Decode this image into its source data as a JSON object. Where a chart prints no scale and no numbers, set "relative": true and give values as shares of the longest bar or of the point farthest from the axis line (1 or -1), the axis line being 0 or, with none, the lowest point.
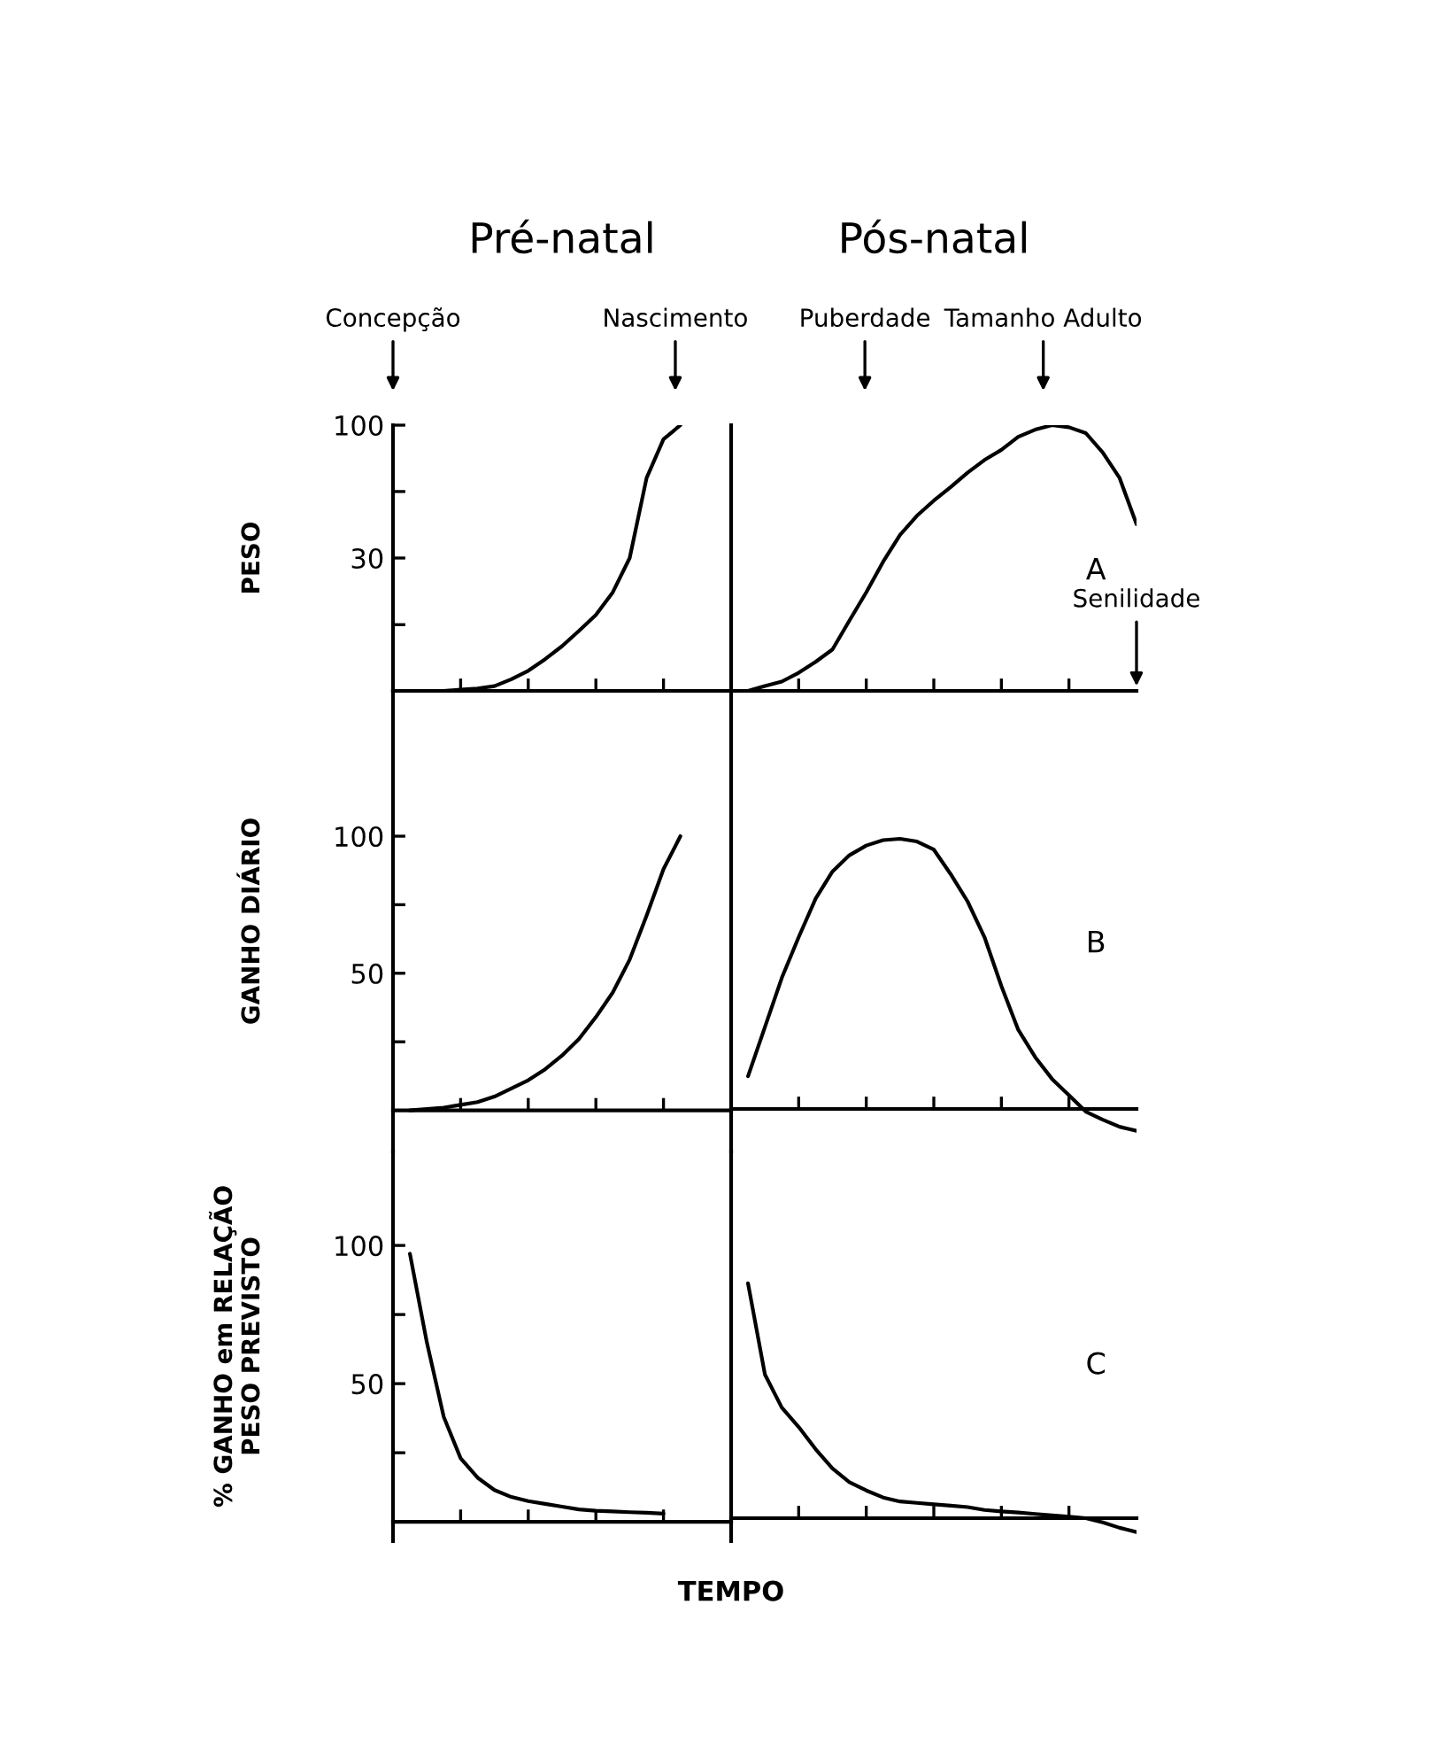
{
  "chart_data": [
    {
      "type": "line",
      "title": "Pré-natal",
      "ylabel": "PESO",
      "log": true,
      "categories": [
        null,
        null,
        null,
        null,
        null,
        null,
        null,
        null,
        null,
        null,
        null,
        null,
        null,
        null,
        null,
        null,
        null,
        null,
        null,
        null,
        null
      ],
      "series": [
        {
          "color": "#000000",
          "values": [
            null,
            null,
            null,
            9,
            9.1,
            9.2,
            9.4,
            10.0,
            10.8,
            12.0,
            13.5,
            15.5,
            17.9,
            22,
            30,
            62,
            88,
            100,
            null,
            null,
            null
          ]
        }
      ],
      "ylim": [
        9,
        100
      ],
      "yticks": [
        100,
        {
          "value": 54.8,
          "label": null
        },
        30,
        {
          "value": 16.4,
          "label": null
        }
      ],
      "tick_labels": "y",
      "annotations": [
        "Concepção",
        "Nascimento"
      ]
    },
    {
      "type": "line",
      "title": "Pós-natal",
      "relative": true,
      "categories": [
        null,
        null,
        null,
        null,
        null,
        null,
        null,
        null,
        null,
        null,
        null,
        null,
        null,
        null,
        null,
        null,
        null,
        null,
        null,
        null,
        null,
        null,
        null,
        null,
        null
      ],
      "series": [
        {
          "color": "#000000",
          "values": [
            null,
            0,
            0.018,
            0.035,
            0.068,
            0.109,
            0.156,
            0.264,
            0.371,
            0.486,
            0.587,
            0.659,
            0.716,
            0.767,
            0.821,
            0.869,
            0.907,
            0.956,
            0.983,
            1,
            0.992,
            0.97,
            0.897,
            0.801,
            0.627
          ]
        }
      ],
      "tick_labels": false,
      "annotations": [
        "Puberdade",
        "Tamanho Adulto",
        "Senilidade",
        "A"
      ]
    },
    {
      "type": "line",
      "ylabel": "GANHO DIÁRIO",
      "categories": [
        null,
        null,
        null,
        null,
        null,
        null,
        null,
        null,
        null,
        null,
        null,
        null,
        null,
        null,
        null,
        null,
        null,
        null,
        null,
        null,
        null
      ],
      "series": [
        {
          "color": "#000000",
          "values": [
            null,
            0,
            0.5,
            1,
            2,
            3,
            5,
            8,
            11,
            15,
            20,
            26,
            34,
            43,
            55,
            71,
            88,
            100,
            null,
            null,
            null
          ]
        }
      ],
      "ylim": [
        -15,
        153
      ],
      "yticks": [
        100,
        {
          "value": 75,
          "label": null
        },
        50,
        {
          "value": 25,
          "label": null
        }
      ],
      "tick_labels": "y"
    },
    {
      "type": "line",
      "relative": true,
      "categories": [
        null,
        null,
        null,
        null,
        null,
        null,
        null,
        null,
        null,
        null,
        null,
        null,
        null,
        null,
        null,
        null,
        null,
        null,
        null,
        null,
        null,
        null,
        null,
        null,
        null
      ],
      "series": [
        {
          "color": "#000000",
          "values": [
            null,
            0.121,
            0.303,
            0.485,
            0.636,
            0.778,
            0.879,
            0.939,
            0.975,
            0.995,
            1,
            0.99,
            0.96,
            0.869,
            0.768,
            0.636,
            0.455,
            0.293,
            0.192,
            0.111,
            0.051,
            -0.01,
            -0.04,
            -0.066,
            -0.081
          ]
        }
      ],
      "tick_labels": false,
      "annotations": [
        "B"
      ]
    },
    {
      "type": "line",
      "ylabel": "% GANHO em RELAÇÃO\nPESO PREVISTO",
      "categories": [
        null,
        null,
        null,
        null,
        null,
        null,
        null,
        null,
        null,
        null,
        null,
        null,
        null,
        null,
        null,
        null,
        null,
        null,
        null,
        null,
        null
      ],
      "series": [
        {
          "color": "#000000",
          "values": [
            null,
            97,
            65,
            38,
            23,
            16,
            11.5,
            9,
            7.5,
            6.5,
            5.5,
            4.5,
            4,
            3.8,
            3.5,
            3.3,
            3,
            null,
            null,
            null,
            null
          ]
        }
      ],
      "ylim": [
        -7,
        134
      ],
      "yticks": [
        100,
        {
          "value": 75,
          "label": null
        },
        50,
        {
          "value": 25,
          "label": null
        }
      ],
      "tick_labels": "y"
    },
    {
      "type": "line",
      "xlabel": "TEMPO",
      "relative": true,
      "categories": [
        null,
        null,
        null,
        null,
        null,
        null,
        null,
        null,
        null,
        null,
        null,
        null,
        null,
        null,
        null,
        null,
        null,
        null,
        null,
        null,
        null,
        null,
        null,
        null,
        null
      ],
      "series": [
        {
          "color": "#000000",
          "values": [
            null,
            1,
            0.612,
            0.471,
            0.388,
            0.294,
            0.212,
            0.153,
            0.118,
            0.088,
            0.071,
            0.065,
            0.059,
            0.053,
            0.047,
            0.035,
            0.029,
            0.024,
            0.018,
            0.012,
            0.006,
            0,
            -0.018,
            -0.041,
            -0.059
          ]
        }
      ],
      "tick_labels": false,
      "annotations": [
        "C"
      ]
    }
  ]
}
